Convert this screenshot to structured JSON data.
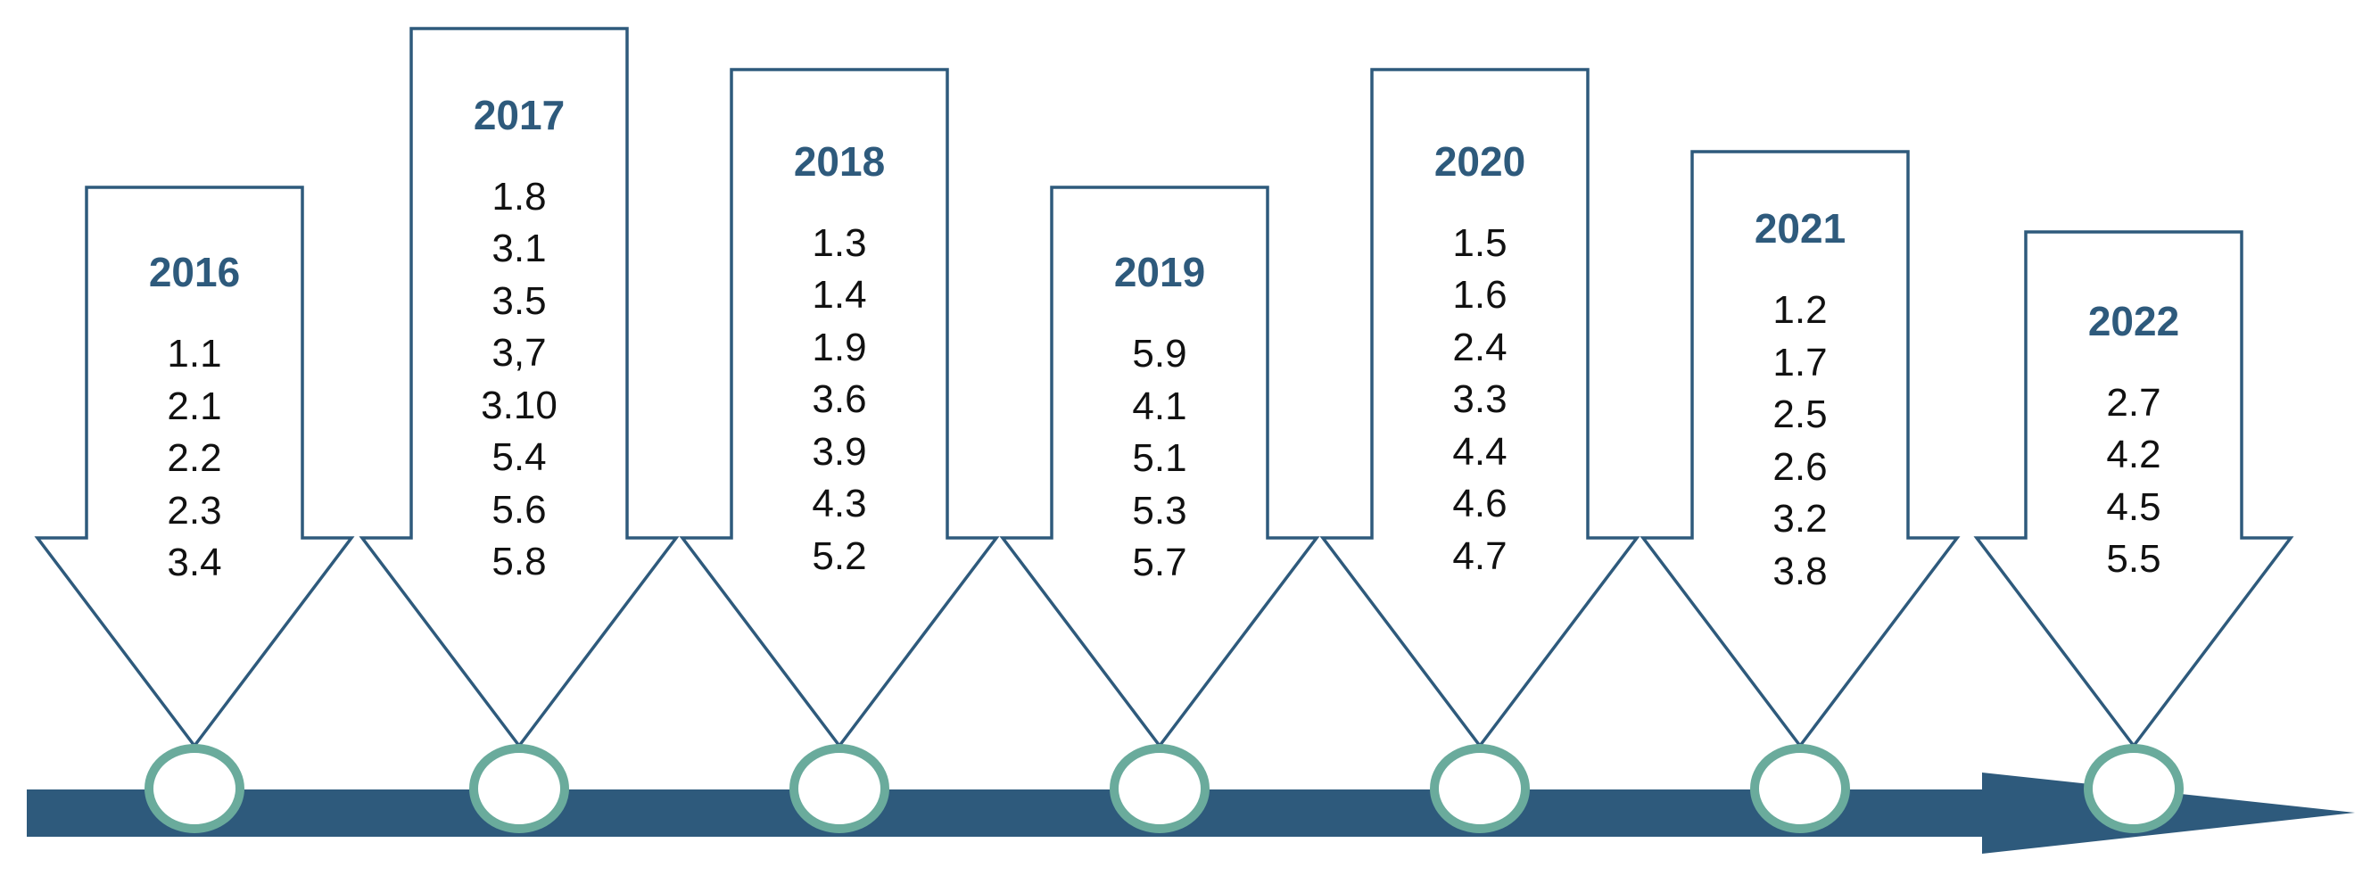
{
  "timeline": {
    "colors": {
      "arrow_stroke": "#2e5a7c",
      "axis_fill": "#2e5a7c",
      "circle_stroke": "#6aab9c",
      "year_text": "#2e5a7c",
      "item_text": "#111111"
    },
    "entries": [
      {
        "year": "2016",
        "items": [
          "1.1",
          "2.1",
          "2.2",
          "2.3",
          "3.4"
        ]
      },
      {
        "year": "2017",
        "items": [
          "1.8",
          "3.1",
          "3.5",
          "3,7",
          "3.10",
          "5.4",
          "5.6",
          "5.8"
        ]
      },
      {
        "year": "2018",
        "items": [
          "1.3",
          "1.4",
          "1.9",
          "3.6",
          "3.9",
          "4.3",
          "5.2"
        ]
      },
      {
        "year": "2019",
        "items": [
          "5.9",
          "4.1",
          "5.1",
          "5.3",
          "5.7"
        ]
      },
      {
        "year": "2020",
        "items": [
          "1.5",
          "1.6",
          "2.4",
          "3.3",
          "4.4",
          "4.6",
          "4.7"
        ]
      },
      {
        "year": "2021",
        "items": [
          "1.2",
          "1.7",
          "2.5",
          "2.6",
          "3.2",
          "3.8"
        ]
      },
      {
        "year": "2022",
        "items": [
          "2.7",
          "4.2",
          "4.5",
          "5.5"
        ]
      }
    ]
  }
}
